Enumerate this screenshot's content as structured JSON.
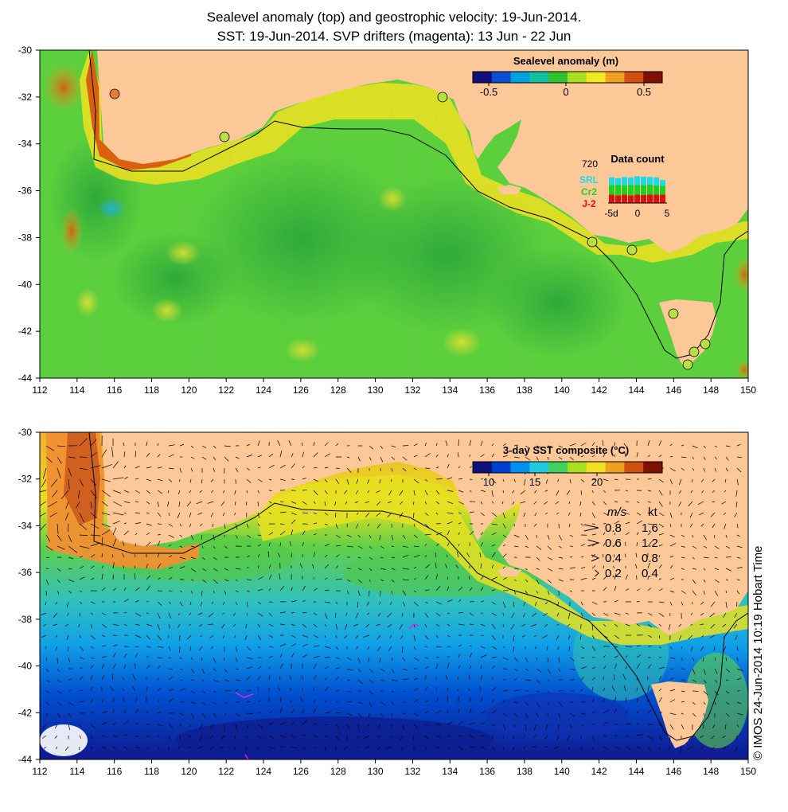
{
  "title": {
    "line1": "Sealevel anomaly (top) and geostrophic velocity: 19-Jun-2014.",
    "line2": "SST: 19-Jun-2014. SVP drifters (magenta): 13 Jun - 22 Jun"
  },
  "axes": {
    "x_ticks": [
      "112",
      "114",
      "116",
      "118",
      "120",
      "122",
      "124",
      "126",
      "128",
      "130",
      "132",
      "134",
      "136",
      "138",
      "140",
      "142",
      "144",
      "146",
      "148",
      "150"
    ],
    "y_ticks": [
      "-30",
      "-32",
      "-34",
      "-36",
      "-38",
      "-40",
      "-42",
      "-44"
    ]
  },
  "top_panel": {
    "colorbar_title": "Sealevel anomaly (m)",
    "colorbar_ticks": [
      "-0.5",
      "0",
      "0.5"
    ],
    "colorbar_colors": [
      "#10107a",
      "#0a4fd0",
      "#00a0e0",
      "#10c0a0",
      "#30c030",
      "#a8e020",
      "#f0e820",
      "#f0a020",
      "#d05010",
      "#801000"
    ],
    "data_count": {
      "title": "Data count",
      "max_label": "720",
      "satellites": [
        {
          "name": "SRL",
          "color": "#20d8e8"
        },
        {
          "name": "Cr2",
          "color": "#20d020"
        },
        {
          "name": "J-2",
          "color": "#e01010"
        }
      ],
      "x_ticks": [
        "-5d",
        "0",
        "5"
      ],
      "bars": [
        {
          "srl": 0.2,
          "cr2": 0.25,
          "j2": 0.22
        },
        {
          "srl": 0.18,
          "cr2": 0.27,
          "j2": 0.2
        },
        {
          "srl": 0.22,
          "cr2": 0.24,
          "j2": 0.22
        },
        {
          "srl": 0.2,
          "cr2": 0.27,
          "j2": 0.2
        },
        {
          "srl": 0.23,
          "cr2": 0.25,
          "j2": 0.22
        },
        {
          "srl": 0.22,
          "cr2": 0.26,
          "j2": 0.21
        },
        {
          "srl": 0.2,
          "cr2": 0.26,
          "j2": 0.22
        },
        {
          "srl": 0.21,
          "cr2": 0.24,
          "j2": 0.22
        },
        {
          "srl": 0.15,
          "cr2": 0.23,
          "j2": 0.22
        }
      ]
    }
  },
  "bottom_panel": {
    "colorbar_title": "3-day SST composite (°C)",
    "colorbar_ticks": [
      "10",
      "15",
      "20"
    ],
    "colorbar_colors": [
      "#101080",
      "#0040d0",
      "#0090f0",
      "#20c8e0",
      "#40d060",
      "#a8e020",
      "#f0e020",
      "#f0a020",
      "#d05010",
      "#801000"
    ],
    "speed_legend": {
      "header_ms": "m/s",
      "header_kt": "kt",
      "rows": [
        {
          "ms": "0.8",
          "kt": "1.6",
          "scale": 0.8
        },
        {
          "ms": "0.6",
          "kt": "1.2",
          "scale": 0.6
        },
        {
          "ms": "0.4",
          "kt": "0.8",
          "scale": 0.4
        },
        {
          "ms": "0.2",
          "kt": "0.4",
          "scale": 0.2
        }
      ]
    }
  },
  "credit": "© IMOS 24-Jun-2014 10:19 Hobart Time",
  "colors": {
    "land": "#fcc898",
    "ocean_green": "#5ccf3c",
    "ocean_dark_green": "#38b838",
    "coast_yellow": "#f0e020",
    "drifter": "#e020e0"
  }
}
